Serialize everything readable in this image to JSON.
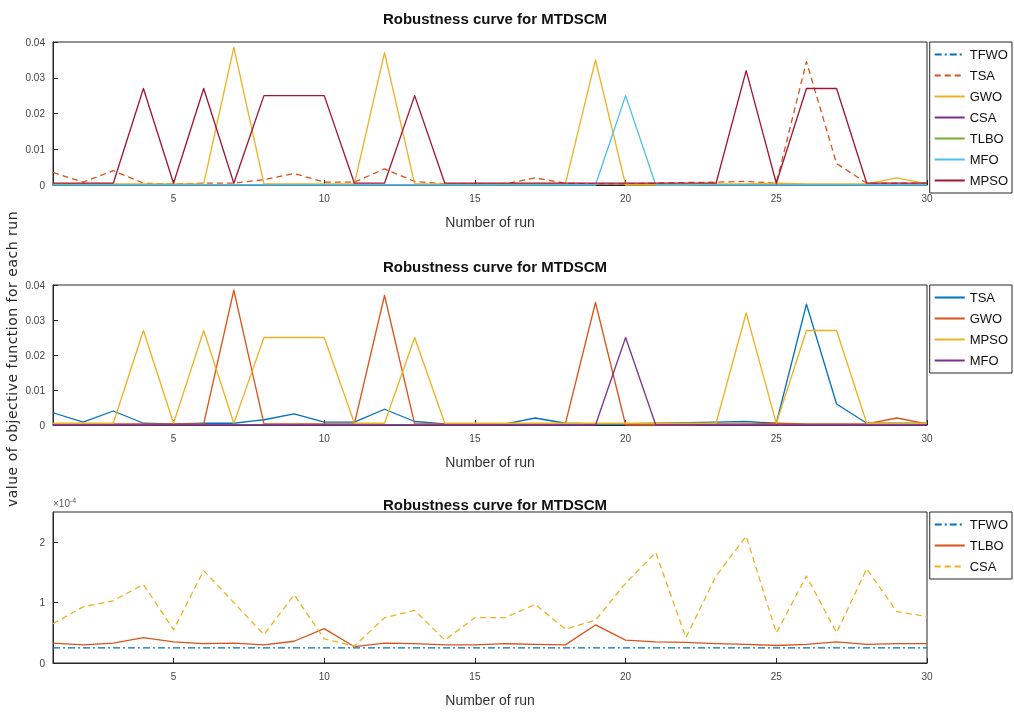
{
  "chart_data": [
    {
      "type": "line",
      "title": "Robustness curve for MTDSCM",
      "xlabel": "Number of run",
      "x": [
        1,
        2,
        3,
        4,
        5,
        6,
        7,
        8,
        9,
        10,
        11,
        12,
        13,
        14,
        15,
        16,
        17,
        18,
        19,
        20,
        21,
        22,
        23,
        24,
        25,
        26,
        27,
        28,
        29,
        30
      ],
      "xlim": [
        1,
        30
      ],
      "xticks": [
        5,
        10,
        15,
        20,
        25,
        30
      ],
      "ylim": [
        0,
        0.04
      ],
      "yticks": [
        0,
        0.01,
        0.02,
        0.03,
        0.04
      ],
      "grid": false,
      "legend": "right",
      "marker": "none",
      "series": [
        {
          "name": "TFWO",
          "color": "#0072bd",
          "line_style": "dashdot",
          "values": [
            null,
            null,
            null,
            null,
            null,
            null,
            null,
            null,
            null,
            null,
            null,
            null,
            null,
            null,
            null,
            null,
            null,
            null,
            null,
            null,
            null,
            null,
            null,
            null,
            null,
            null,
            null,
            null,
            null,
            null
          ]
        },
        {
          "name": "TSA",
          "color": "#d95319",
          "line_style": "dashed",
          "values": [
            0.0035,
            0.0008,
            0.004,
            0.0005,
            0.0003,
            0.0005,
            0.0005,
            0.0015,
            0.0032,
            0.0008,
            0.0008,
            0.0045,
            0.001,
            0.0003,
            0.0003,
            0.0003,
            0.002,
            0.0005,
            0.0003,
            0.0003,
            0.0005,
            0.0007,
            0.0008,
            0.001,
            0.0005,
            0.0345,
            0.006,
            0.0005,
            0.0005,
            0.0005
          ]
        },
        {
          "name": "GWO",
          "color": "#edb120",
          "line_style": "solid",
          "values": [
            0.0003,
            0.0003,
            0.0003,
            0.0003,
            0.0003,
            0.0003,
            0.0385,
            0.0003,
            0.0003,
            0.0003,
            0.0003,
            0.037,
            0.0003,
            0.0003,
            0.0003,
            0.0003,
            0.0003,
            0.0003,
            0.035,
            0,
            0,
            0,
            0.0003,
            0.0003,
            0.0005,
            0.0003,
            0.0003,
            0.0003,
            0.002,
            0.0003
          ]
        },
        {
          "name": "CSA",
          "color": "#7e2f8e",
          "line_style": "solid",
          "values": [
            null,
            null,
            null,
            null,
            null,
            null,
            null,
            null,
            null,
            null,
            null,
            null,
            null,
            null,
            null,
            null,
            null,
            null,
            null,
            null,
            null,
            null,
            null,
            null,
            null,
            null,
            null,
            null,
            null,
            null
          ]
        },
        {
          "name": "TLBO",
          "color": "#77ac30",
          "line_style": "solid",
          "values": [
            null,
            null,
            null,
            null,
            null,
            null,
            null,
            null,
            null,
            null,
            null,
            null,
            null,
            null,
            null,
            null,
            null,
            null,
            null,
            null,
            null,
            null,
            null,
            null,
            null,
            null,
            null,
            null,
            null,
            null
          ]
        },
        {
          "name": "MFO",
          "color": "#4dbeee",
          "line_style": "solid",
          "values": [
            0,
            0,
            0,
            0,
            0,
            0,
            0,
            0,
            0,
            0,
            0,
            0,
            0,
            0,
            0,
            0,
            0,
            0,
            0,
            0.025,
            0,
            0,
            0,
            0,
            0,
            0,
            0,
            0,
            0,
            0
          ]
        },
        {
          "name": "MPSO",
          "color": "#a2142f",
          "line_style": "solid",
          "values": [
            0.0005,
            0.0005,
            0.0005,
            0.027,
            0.0005,
            0.027,
            0.0005,
            0.025,
            0.025,
            0.025,
            0.0005,
            0.0005,
            0.025,
            0.0005,
            0.0005,
            0.0005,
            0.0005,
            0.0005,
            0.0005,
            0.0005,
            0.0005,
            0.0005,
            0.0005,
            0.032,
            0.0005,
            0.027,
            0.027,
            0.0005,
            0.0005,
            0.0005
          ]
        }
      ]
    },
    {
      "type": "line",
      "title": "Robustness curve for MTDSCM",
      "xlabel": "Number of run",
      "ylabel": "value of objective function for each run",
      "x": [
        1,
        2,
        3,
        4,
        5,
        6,
        7,
        8,
        9,
        10,
        11,
        12,
        13,
        14,
        15,
        16,
        17,
        18,
        19,
        20,
        21,
        22,
        23,
        24,
        25,
        26,
        27,
        28,
        29,
        30
      ],
      "xlim": [
        1,
        30
      ],
      "xticks": [
        5,
        10,
        15,
        20,
        25,
        30
      ],
      "ylim": [
        0,
        0.04
      ],
      "yticks": [
        0,
        0.01,
        0.02,
        0.03,
        0.04
      ],
      "grid": false,
      "legend": "right",
      "marker": "none",
      "series": [
        {
          "name": "TSA",
          "color": "#0072bd",
          "line_style": "solid",
          "values": [
            0.0035,
            0.0008,
            0.004,
            0.0005,
            0.0003,
            0.0005,
            0.0005,
            0.0015,
            0.0032,
            0.0008,
            0.0008,
            0.0045,
            0.001,
            0.0003,
            0.0003,
            0.0003,
            0.002,
            0.0005,
            0.0003,
            0.0003,
            0.0005,
            0.0007,
            0.0008,
            0.001,
            0.0005,
            0.0345,
            0.006,
            0.0005,
            0.0005,
            0.0005
          ]
        },
        {
          "name": "GWO",
          "color": "#d95319",
          "line_style": "solid",
          "values": [
            0.0003,
            0.0003,
            0.0003,
            0.0003,
            0.0003,
            0.0003,
            0.0385,
            0.0003,
            0.0003,
            0.0003,
            0.0003,
            0.037,
            0.0003,
            0.0003,
            0.0003,
            0.0003,
            0.0003,
            0.0003,
            0.035,
            0,
            0,
            0,
            0.0003,
            0.0003,
            0.0005,
            0.0003,
            0.0003,
            0.0003,
            0.002,
            0.0003
          ]
        },
        {
          "name": "MPSO",
          "color": "#edb120",
          "line_style": "solid",
          "values": [
            0.0005,
            0.0005,
            0.0005,
            0.027,
            0.0005,
            0.027,
            0.0005,
            0.025,
            0.025,
            0.025,
            0.0005,
            0.0005,
            0.025,
            0.0005,
            0.0005,
            0.0005,
            0.0005,
            0.0005,
            0.0005,
            0.0005,
            0.0005,
            0.0005,
            0.0005,
            0.032,
            0.0005,
            0.027,
            0.027,
            0.0005,
            0.0005,
            0.0005
          ]
        },
        {
          "name": "MFO",
          "color": "#7e2f8e",
          "line_style": "solid",
          "values": [
            0,
            0,
            0,
            0,
            0,
            0,
            0,
            0,
            0,
            0,
            0,
            0,
            0,
            0,
            0,
            0,
            0,
            0,
            0,
            0.025,
            0,
            0,
            0,
            0,
            0,
            0,
            0,
            0,
            0,
            0
          ]
        }
      ]
    },
    {
      "type": "line",
      "title": "Robustness curve for MTDSCM",
      "xlabel": "Number of run",
      "annotations": [
        "×10$^{-4}$"
      ],
      "x": [
        1,
        2,
        3,
        4,
        5,
        6,
        7,
        8,
        9,
        10,
        11,
        12,
        13,
        14,
        15,
        16,
        17,
        18,
        19,
        20,
        21,
        22,
        23,
        24,
        25,
        26,
        27,
        28,
        29,
        30
      ],
      "xlim": [
        1,
        30
      ],
      "xticks": [
        5,
        10,
        15,
        20,
        25,
        30
      ],
      "ylim": [
        0,
        2.5
      ],
      "yticks": [
        0,
        1,
        2
      ],
      "grid": false,
      "legend": "right",
      "marker": "none",
      "series": [
        {
          "name": "TFWO",
          "color": "#0072bd",
          "line_style": "dashdot",
          "values": [
            0.25,
            0.25,
            0.25,
            0.25,
            0.25,
            0.25,
            0.25,
            0.25,
            0.25,
            0.25,
            0.25,
            0.25,
            0.25,
            0.25,
            0.25,
            0.25,
            0.25,
            0.25,
            0.25,
            0.25,
            0.25,
            0.25,
            0.25,
            0.25,
            0.25,
            0.25,
            0.25,
            0.25,
            0.25,
            0.25
          ]
        },
        {
          "name": "TLBO",
          "color": "#d95319",
          "line_style": "solid",
          "values": [
            0.33,
            0.3,
            0.33,
            0.42,
            0.35,
            0.32,
            0.33,
            0.3,
            0.36,
            0.57,
            0.27,
            0.33,
            0.32,
            0.3,
            0.3,
            0.32,
            0.31,
            0.3,
            0.63,
            0.38,
            0.35,
            0.34,
            0.32,
            0.31,
            0.29,
            0.31,
            0.35,
            0.31,
            0.32,
            0.32
          ]
        },
        {
          "name": "CSA",
          "color": "#edb120",
          "line_style": "dashed",
          "values": [
            0.65,
            0.93,
            1.03,
            1.3,
            0.55,
            1.53,
            1.0,
            0.47,
            1.13,
            0.4,
            0.28,
            0.75,
            0.87,
            0.38,
            0.75,
            0.75,
            0.97,
            0.56,
            0.71,
            1.32,
            1.83,
            0.42,
            1.44,
            2.1,
            0.5,
            1.44,
            0.5,
            1.56,
            0.85,
            0.77
          ]
        }
      ]
    }
  ]
}
